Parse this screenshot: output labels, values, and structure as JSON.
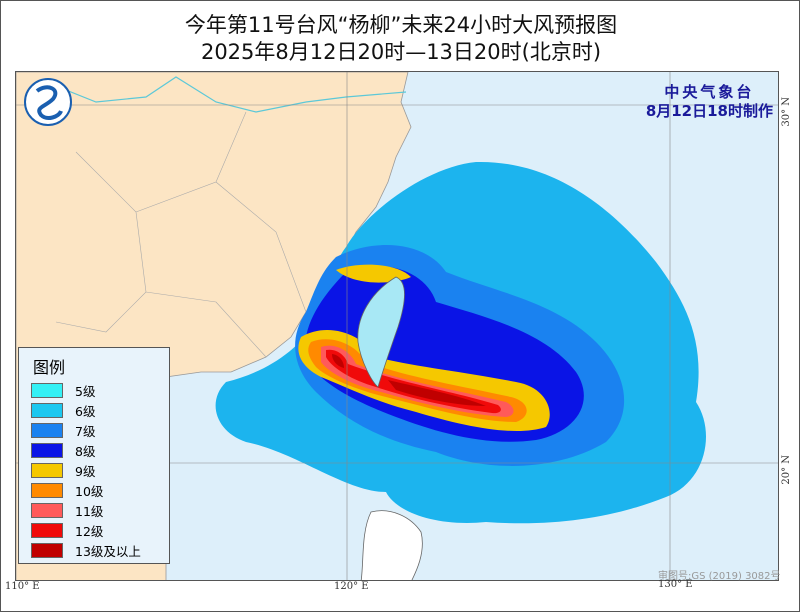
{
  "title": "今年第11号台风“杨柳”未来24小时大风预报图",
  "subtitle": "2025年8月12日20时—13日20时(北京时)",
  "issuer": {
    "name": "中央气象台",
    "issued": "8月12日18时制作"
  },
  "approval_number": "审图号:GS (2019) 3082号",
  "axes": {
    "lon_ticks": [
      "110° E",
      "120° E",
      "130° E"
    ],
    "lat_ticks": [
      "30° N",
      "20° N"
    ]
  },
  "legend": {
    "title": "图例",
    "items": [
      {
        "label": "5级",
        "color": "#33f0f5"
      },
      {
        "label": "6级",
        "color": "#1cc8f0"
      },
      {
        "label": "7级",
        "color": "#1a82f0"
      },
      {
        "label": "8级",
        "color": "#0a14e6"
      },
      {
        "label": "9级",
        "color": "#f5c800"
      },
      {
        "label": "10级",
        "color": "#ff8a00"
      },
      {
        "label": "11级",
        "color": "#ff5a5a"
      },
      {
        "label": "12级",
        "color": "#f00a0a"
      },
      {
        "label": "13级及以上",
        "color": "#c00000"
      }
    ]
  },
  "colors": {
    "land": "#fce5c4",
    "sea": "#ddeffa",
    "outer_field": "#1cb4ee"
  }
}
